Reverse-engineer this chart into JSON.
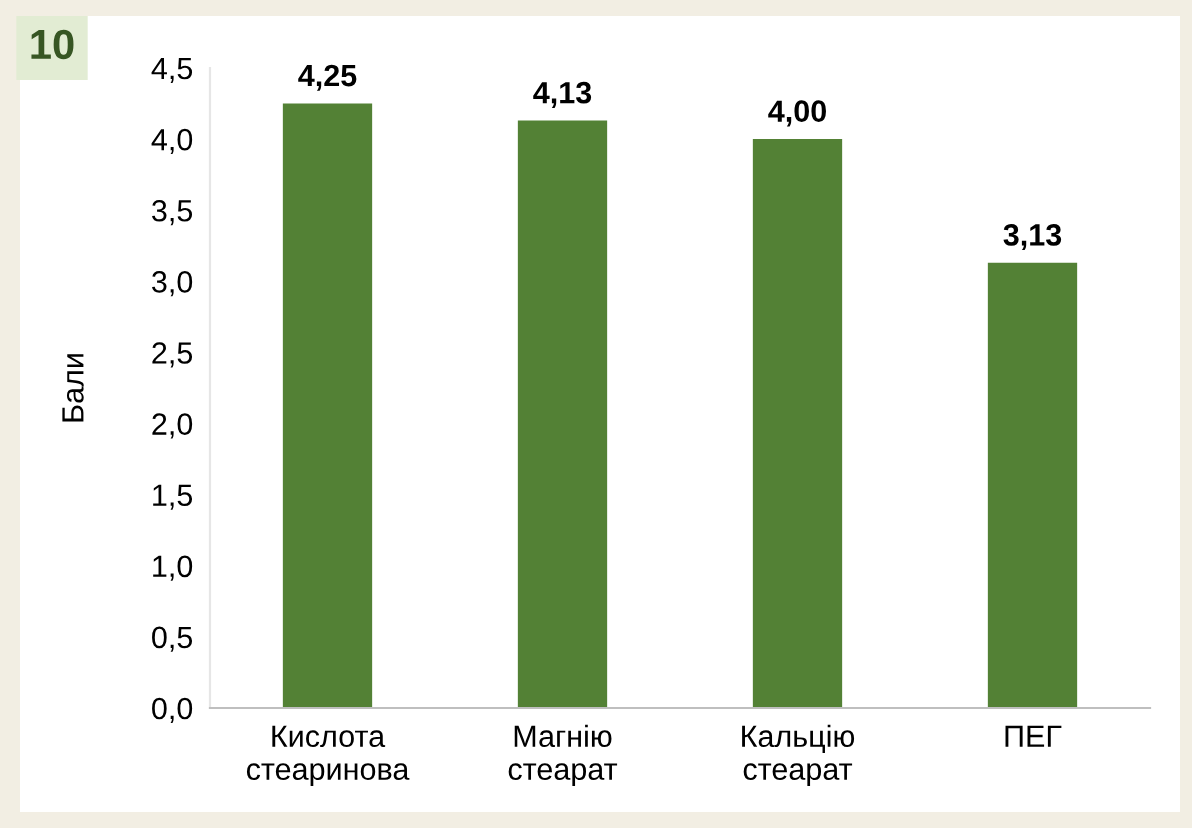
{
  "chart_data": {
    "type": "bar",
    "ylabel": "Бали",
    "categories": [
      "Кислота\nстеаринова",
      "Магнію\nстеарат",
      "Кальцію\nстеарат",
      "ПЕГ"
    ],
    "values": [
      4.25,
      4.13,
      4.0,
      3.13
    ],
    "value_labels": [
      "4,25",
      "4,13",
      "4,00",
      "3,13"
    ],
    "color": "#538135",
    "ylim": [
      0,
      4.5
    ],
    "yticks": [
      {
        "value": 0,
        "label": "0,0"
      },
      {
        "value": 0.5,
        "label": "0,5"
      },
      {
        "value": 1,
        "label": "1,0"
      },
      {
        "value": 1.5,
        "label": "1,5"
      },
      {
        "value": 2,
        "label": "2,0"
      },
      {
        "value": 2.5,
        "label": "2,5"
      },
      {
        "value": 3,
        "label": "3,0"
      },
      {
        "value": 3.5,
        "label": "3,5"
      },
      {
        "value": 4,
        "label": "4,0"
      },
      {
        "value": 4.5,
        "label": "4,5"
      }
    ],
    "annotations": [
      "10"
    ]
  }
}
